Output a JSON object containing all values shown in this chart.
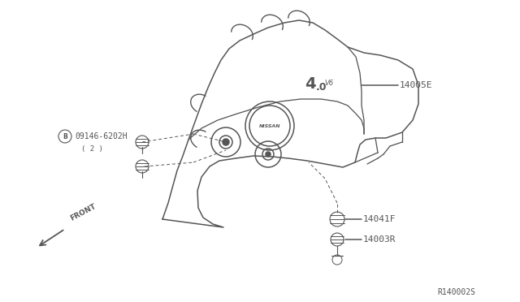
{
  "bg_color": "#ffffff",
  "line_color": "#555555",
  "ref_code": "R140002S",
  "fig_w": 6.4,
  "fig_h": 3.72,
  "xlim": [
    0,
    640
  ],
  "ylim": [
    0,
    372
  ]
}
